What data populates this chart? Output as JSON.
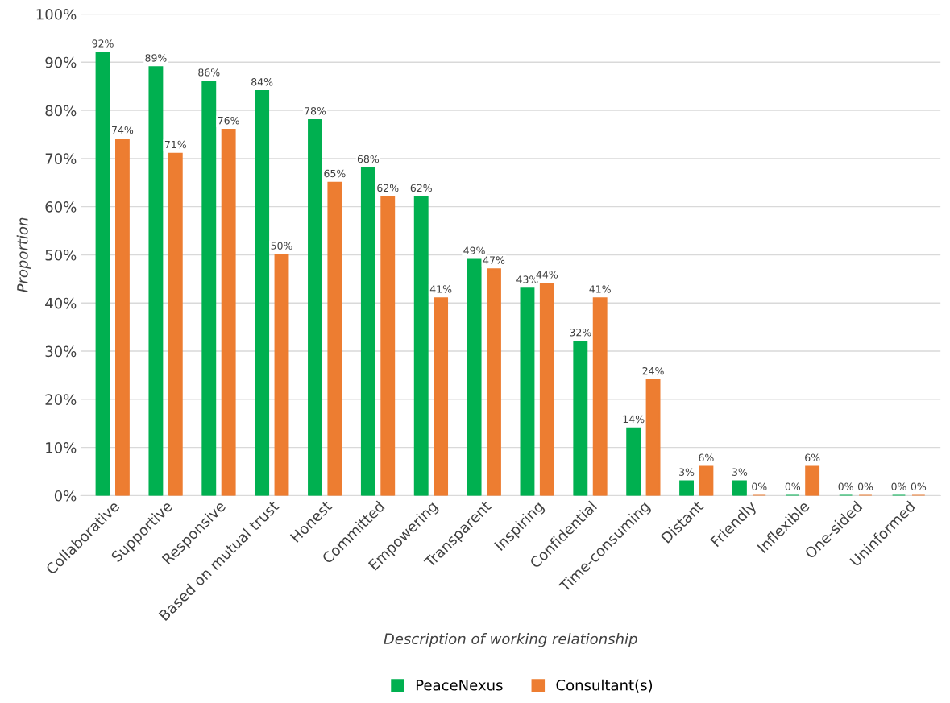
{
  "chart_data": {
    "type": "bar",
    "xlabel": "Description of working relationship",
    "ylabel": "Proportion",
    "categories": [
      "Collaborative",
      "Supportive",
      "Responsive",
      "Based on mutual trust",
      "Honest",
      "Committed",
      "Empowering",
      "Transparent",
      "Inspiring",
      "Confidential",
      "Time-consuming",
      "Distant",
      "Friendly",
      "Inflexible",
      "One-sided",
      "Uninformed"
    ],
    "series": [
      {
        "name": "PeaceNexus",
        "color": "#00b050",
        "values": [
          92,
          89,
          86,
          84,
          78,
          68,
          62,
          49,
          43,
          32,
          14,
          3,
          3,
          0,
          0,
          0
        ],
        "value_labels": [
          "92%",
          "89%",
          "86%",
          "84%",
          "78%",
          "68%",
          "62%",
          "49%",
          "43%",
          "32%",
          "14%",
          "3%",
          "3%",
          "0%",
          "0%",
          "0%"
        ]
      },
      {
        "name": "Consultant(s)",
        "color": "#ed7d31",
        "values": [
          74,
          71,
          76,
          50,
          65,
          62,
          41,
          47,
          44,
          41,
          24,
          6,
          0,
          6,
          0,
          0
        ],
        "value_labels": [
          "74%",
          "71%",
          "76%",
          "50%",
          "65%",
          "62%",
          "41%",
          "47%",
          "44%",
          "41%",
          "24%",
          "6%",
          "0%",
          "6%",
          "0%",
          "0%"
        ]
      }
    ],
    "ylim": [
      0,
      100
    ],
    "yticks": [
      {
        "value": 0,
        "label": "0%"
      },
      {
        "value": 10,
        "label": "10%"
      },
      {
        "value": 20,
        "label": "20%"
      },
      {
        "value": 30,
        "label": "30%"
      },
      {
        "value": 40,
        "label": "40%"
      },
      {
        "value": 50,
        "label": "50%"
      },
      {
        "value": 60,
        "label": "60%"
      },
      {
        "value": 70,
        "label": "70%"
      },
      {
        "value": 80,
        "label": "80%"
      },
      {
        "value": 90,
        "label": "90%"
      },
      {
        "value": 100,
        "label": "100%"
      }
    ],
    "grid": "y",
    "legend": "bottom"
  }
}
